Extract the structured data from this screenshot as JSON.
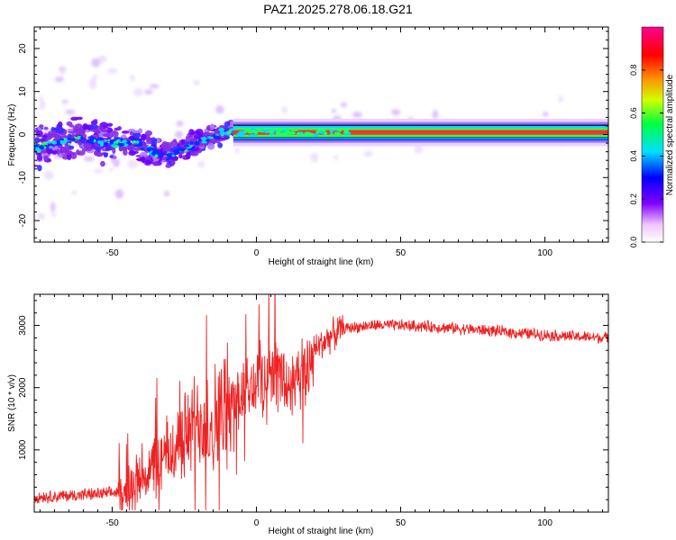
{
  "figure": {
    "title": "PAZ1.2025.278.06.18.G21"
  },
  "chart_data": [
    {
      "type": "heatmap",
      "name": "spectrogram",
      "xlabel": "Height of straight line (km)",
      "ylabel": "Frequency (Hz)",
      "xlim": [
        -77,
        122
      ],
      "ylim": [
        -25,
        25
      ],
      "xticks": [
        -50,
        0,
        50,
        100
      ],
      "yticks": [
        -20,
        -10,
        0,
        10,
        20
      ],
      "xtick_labels": [
        "-50",
        "0",
        "50",
        "100"
      ],
      "ytick_labels": [
        "-20",
        "-10",
        "0",
        "10",
        "20"
      ],
      "colorbar": {
        "label": "Normalized spectral amplitude",
        "range": [
          0,
          1
        ],
        "ticks": [
          0.0,
          0.2,
          0.4,
          0.6,
          0.8
        ],
        "tick_labels": [
          "0.0",
          "0.2",
          "0.4",
          "0.6",
          "0.8"
        ],
        "colormap": [
          "#ffffff",
          "#e6d0ff",
          "#7b00ff",
          "#0000ff",
          "#00e5ff",
          "#00ff40",
          "#ffff00",
          "#ff8000",
          "#ff0000",
          "#ff0080"
        ]
      },
      "ridge": {
        "description_x": [
          -75,
          -68,
          -62,
          -55,
          -48,
          -42,
          -36,
          -30,
          -24,
          -18,
          -12,
          -8,
          0,
          10,
          20,
          30,
          40,
          60,
          80,
          100,
          122
        ],
        "frequency": [
          -3,
          -2,
          -1,
          -1.5,
          -2,
          -2,
          -4,
          -5,
          -3,
          -1,
          0.5,
          1,
          1,
          1,
          0.5,
          0.5,
          0.8,
          0.8,
          0.8,
          0.8,
          0.8
        ]
      }
    },
    {
      "type": "line",
      "name": "snr",
      "xlabel": "Height of straight line (km)",
      "ylabel": "SNR (10 * v/v)",
      "xlim": [
        -77,
        122
      ],
      "ylim": [
        0,
        3500
      ],
      "xticks": [
        -50,
        0,
        50,
        100
      ],
      "yticks": [
        1000,
        2000,
        3000
      ],
      "xtick_labels": [
        "-50",
        "0",
        "50",
        "100"
      ],
      "ytick_labels": [
        "1000",
        "2000",
        "3000"
      ],
      "series": [
        {
          "name": "SNR",
          "color": "#ee2222",
          "x": [
            -77,
            -70,
            -60,
            -50,
            -45,
            -40,
            -35,
            -30,
            -25,
            -20,
            -15,
            -10,
            -5,
            0,
            5,
            8,
            10,
            12,
            15,
            18,
            20,
            25,
            30,
            40,
            50,
            60,
            70,
            80,
            90,
            100,
            110,
            122
          ],
          "y": [
            250,
            250,
            280,
            300,
            380,
            550,
            750,
            950,
            1200,
            1500,
            1450,
            1700,
            1900,
            2050,
            2300,
            2200,
            2050,
            2000,
            2050,
            2350,
            2600,
            2800,
            2950,
            3000,
            3000,
            2980,
            2950,
            2920,
            2880,
            2850,
            2820,
            2800
          ]
        }
      ]
    }
  ]
}
